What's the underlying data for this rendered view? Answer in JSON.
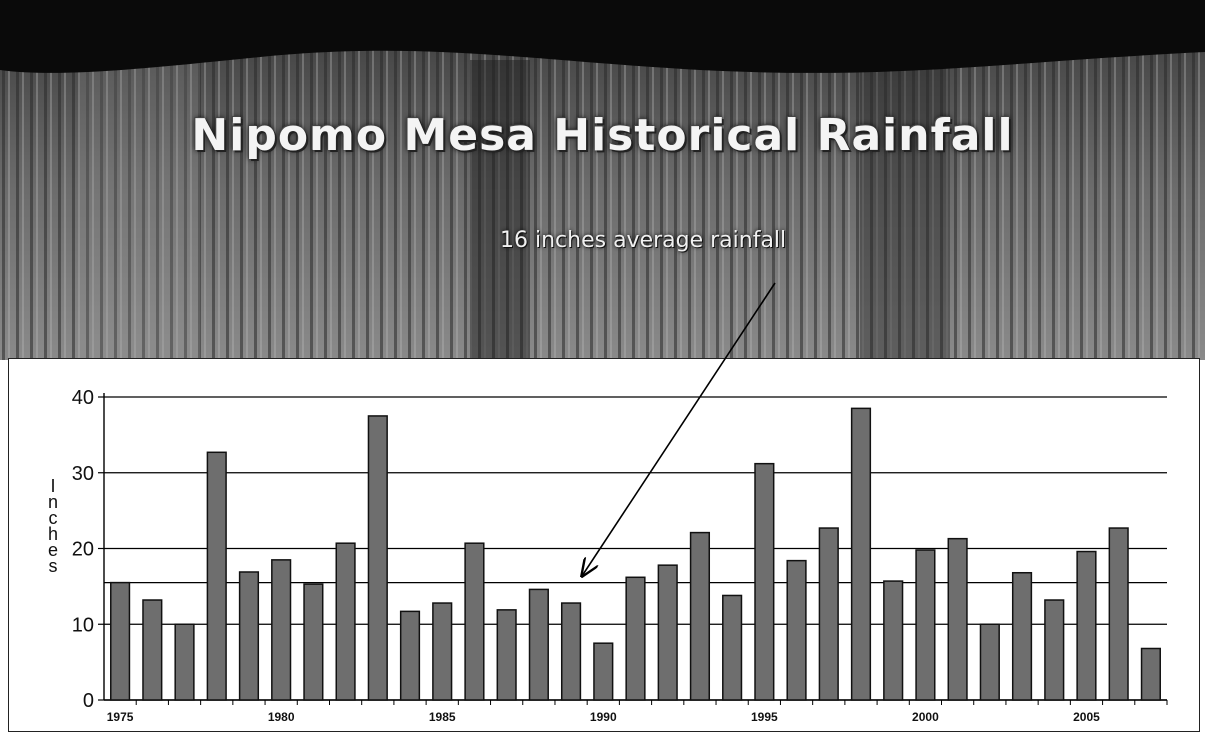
{
  "slide": {
    "title": "Nipomo Mesa Historical Rainfall",
    "callout": "16 inches average rainfall"
  },
  "colors": {
    "bar_fill": "#6e6e6e",
    "bar_stroke": "#111111",
    "grid": "#000000",
    "band_dark": "#0a0a0a",
    "band_texture": "#5a5a5a"
  },
  "chart_data": {
    "type": "bar",
    "ylabel": "Inches",
    "ylim": [
      0,
      40
    ],
    "y_ticks": [
      0,
      10,
      20,
      30,
      40
    ],
    "x_tick_labels": [
      "1975",
      "1980",
      "1985",
      "1990",
      "1995",
      "2000",
      "2005"
    ],
    "x": [
      1975,
      1976,
      1977,
      1978,
      1979,
      1980,
      1981,
      1982,
      1983,
      1984,
      1985,
      1986,
      1987,
      1988,
      1989,
      1990,
      1991,
      1992,
      1993,
      1994,
      1995,
      1996,
      1997,
      1998,
      1999,
      2000,
      2001,
      2002,
      2003,
      2004,
      2005,
      2006,
      2007
    ],
    "values": [
      15.5,
      13.2,
      10.0,
      32.7,
      16.9,
      18.5,
      15.3,
      20.7,
      37.5,
      11.7,
      12.8,
      20.7,
      11.9,
      14.6,
      12.8,
      7.5,
      16.2,
      17.8,
      22.1,
      13.8,
      31.2,
      18.4,
      22.7,
      38.5,
      15.7,
      19.8,
      21.3,
      10.0,
      16.8,
      13.2,
      19.6,
      22.7,
      6.8
    ],
    "average_line": 15.5,
    "grid": true,
    "legend": "none"
  }
}
